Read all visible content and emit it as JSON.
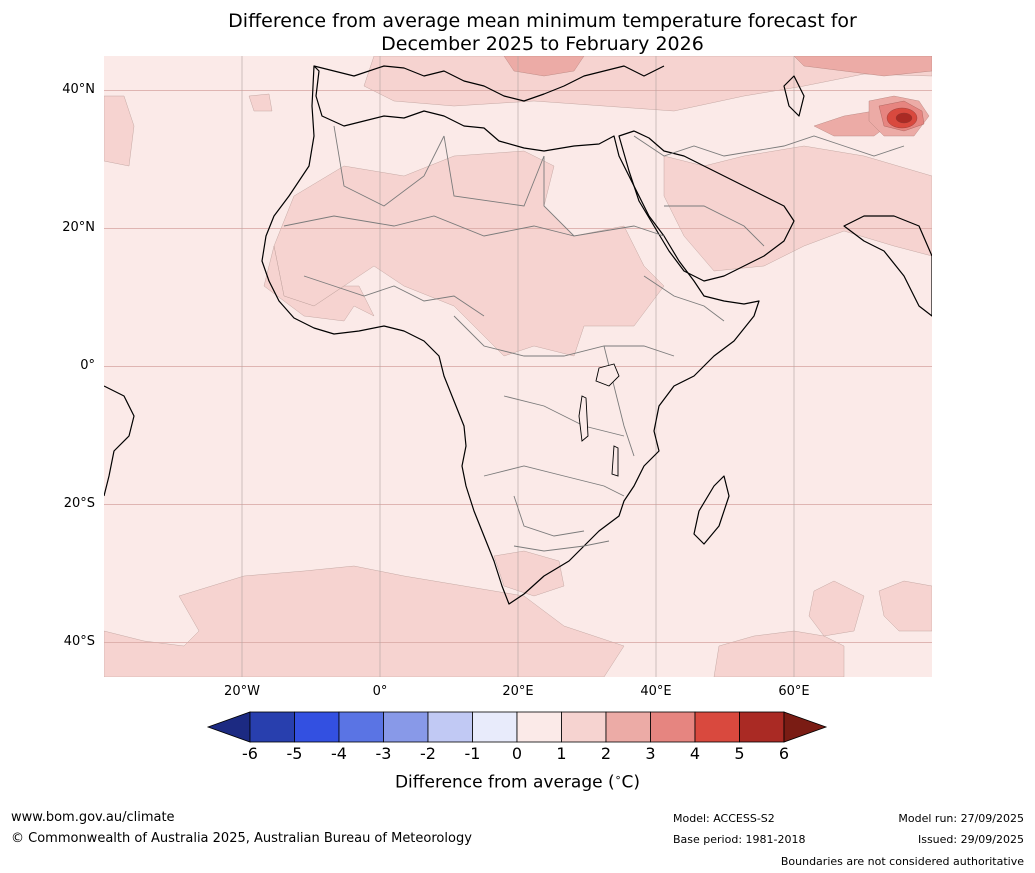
{
  "title": {
    "line1": "Difference from average mean minimum temperature forecast for",
    "line2": "December 2025 to February 2026"
  },
  "map": {
    "lat_labels": [
      "40°N",
      "20°N",
      "0°",
      "20°S",
      "40°S"
    ],
    "lon_labels": [
      "20°W",
      "0°",
      "20°E",
      "40°E",
      "60°E"
    ],
    "extent": {
      "lon_min": -40,
      "lon_max": 80,
      "lat_min": -45,
      "lat_max": 45
    }
  },
  "colorbar": {
    "ticks": [
      "-6",
      "-5",
      "-4",
      "-3",
      "-2",
      "-1",
      "0",
      "1",
      "2",
      "3",
      "4",
      "5",
      "6"
    ],
    "colors": [
      "#1c2a82",
      "#283fae",
      "#3350e1",
      "#5a74e4",
      "#8899e8",
      "#c1c9f4",
      "#e8ebfb",
      "#fbeae8",
      "#f6d3d0",
      "#ecaba6",
      "#e68580",
      "#d9493e",
      "#aa2a24",
      "#7a1c14"
    ],
    "label": "Difference from average (",
    "degree_symbol": "∘",
    "unit": "C)"
  },
  "footer": {
    "website": "www.bom.gov.au/climate",
    "copyright": "© Commonwealth of Australia 2025, Australian Bureau of Meteorology",
    "model": "Model: ACCESS-S2",
    "base_period": "Base period: 1981-2018",
    "model_run": "Model run: 27/09/2025",
    "issued": "Issued: 29/09/2025",
    "disclaimer": "Boundaries are not considered authoritative"
  }
}
